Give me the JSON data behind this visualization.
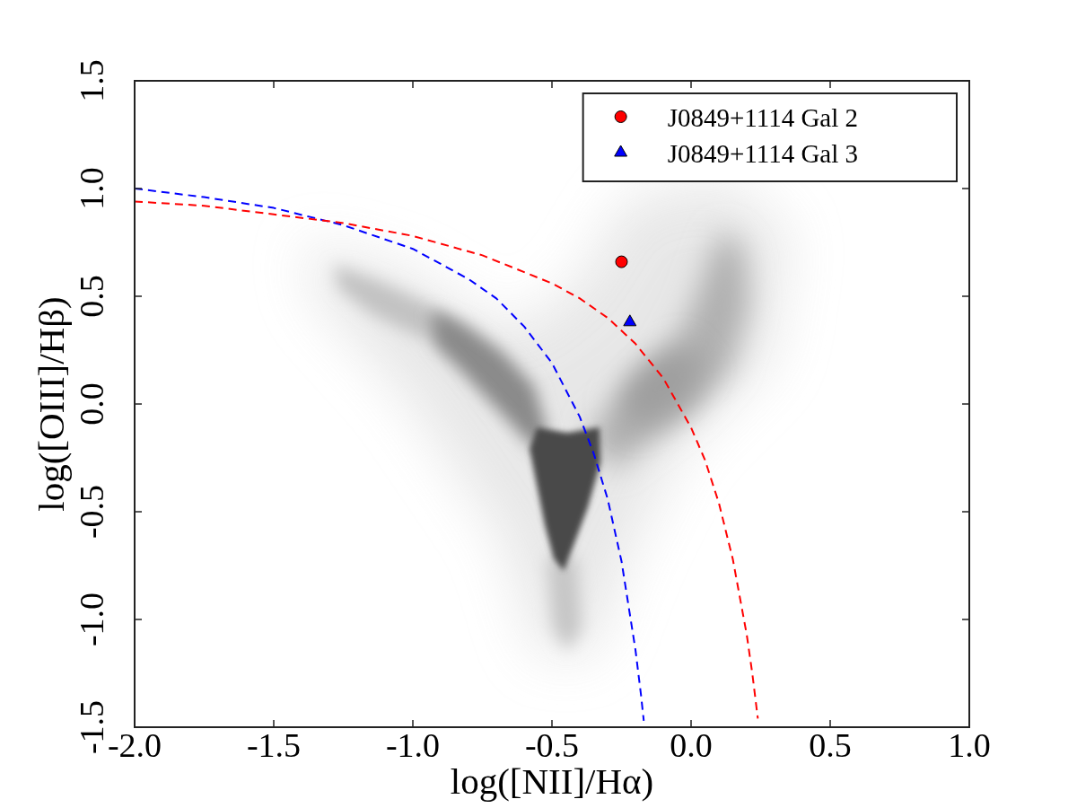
{
  "chart_data": {
    "type": "scatter",
    "xlabel": "log([NII]/Hα)",
    "ylabel": "log([OIII]/Hβ)",
    "xlim": [
      -2.0,
      1.0
    ],
    "ylim": [
      -1.5,
      1.5
    ],
    "xticks": [
      {
        "value": -2,
        "label": "-2.0"
      },
      -1.5,
      {
        "value": -1,
        "label": "-1.0"
      },
      -0.5,
      {
        "value": 0,
        "label": "0.0"
      },
      0.5,
      {
        "value": 1,
        "label": "1.0"
      }
    ],
    "yticks": [
      -1.5,
      {
        "value": -1,
        "label": "-1.0"
      },
      -0.5,
      {
        "value": 0,
        "label": "0.0"
      },
      0.5,
      {
        "value": 1,
        "label": "1.0"
      },
      1.5
    ],
    "legend": "top right",
    "series": [
      {
        "type": "line",
        "color": "#ff0000",
        "line_style": "dashed",
        "marker": "none",
        "x": [
          -2.0,
          -1.75,
          -1.5,
          -1.25,
          -1.0,
          -0.75,
          -0.5,
          -0.4,
          -0.3,
          -0.2,
          -0.1,
          0.0,
          0.05,
          0.1,
          0.15,
          0.2,
          0.22,
          0.24
        ],
        "values": [
          0.94,
          0.92,
          0.88,
          0.84,
          0.78,
          0.69,
          0.56,
          0.49,
          0.4,
          0.28,
          0.12,
          -0.11,
          -0.26,
          -0.46,
          -0.72,
          -1.07,
          -1.25,
          -1.46
        ]
      },
      {
        "type": "line",
        "color": "#0000ff",
        "line_style": "dashed",
        "marker": "none",
        "x": [
          -2.0,
          -1.75,
          -1.5,
          -1.25,
          -1.0,
          -0.8,
          -0.7,
          -0.6,
          -0.5,
          -0.4,
          -0.35,
          -0.3,
          -0.25,
          -0.2,
          -0.18,
          -0.17
        ],
        "values": [
          1.0,
          0.96,
          0.91,
          0.83,
          0.72,
          0.58,
          0.49,
          0.36,
          0.19,
          -0.06,
          -0.23,
          -0.44,
          -0.73,
          -1.14,
          -1.35,
          -1.47
        ]
      },
      {
        "name": "J0849+1114 Gal 2",
        "color": "#ff0000",
        "marker": "circle",
        "x": [
          -0.25
        ],
        "values": [
          0.66
        ]
      },
      {
        "name": "J0849+1114 Gal 3",
        "color": "#0000ff",
        "marker": "triangle",
        "x": [
          -0.22
        ],
        "values": [
          0.38
        ]
      }
    ]
  }
}
